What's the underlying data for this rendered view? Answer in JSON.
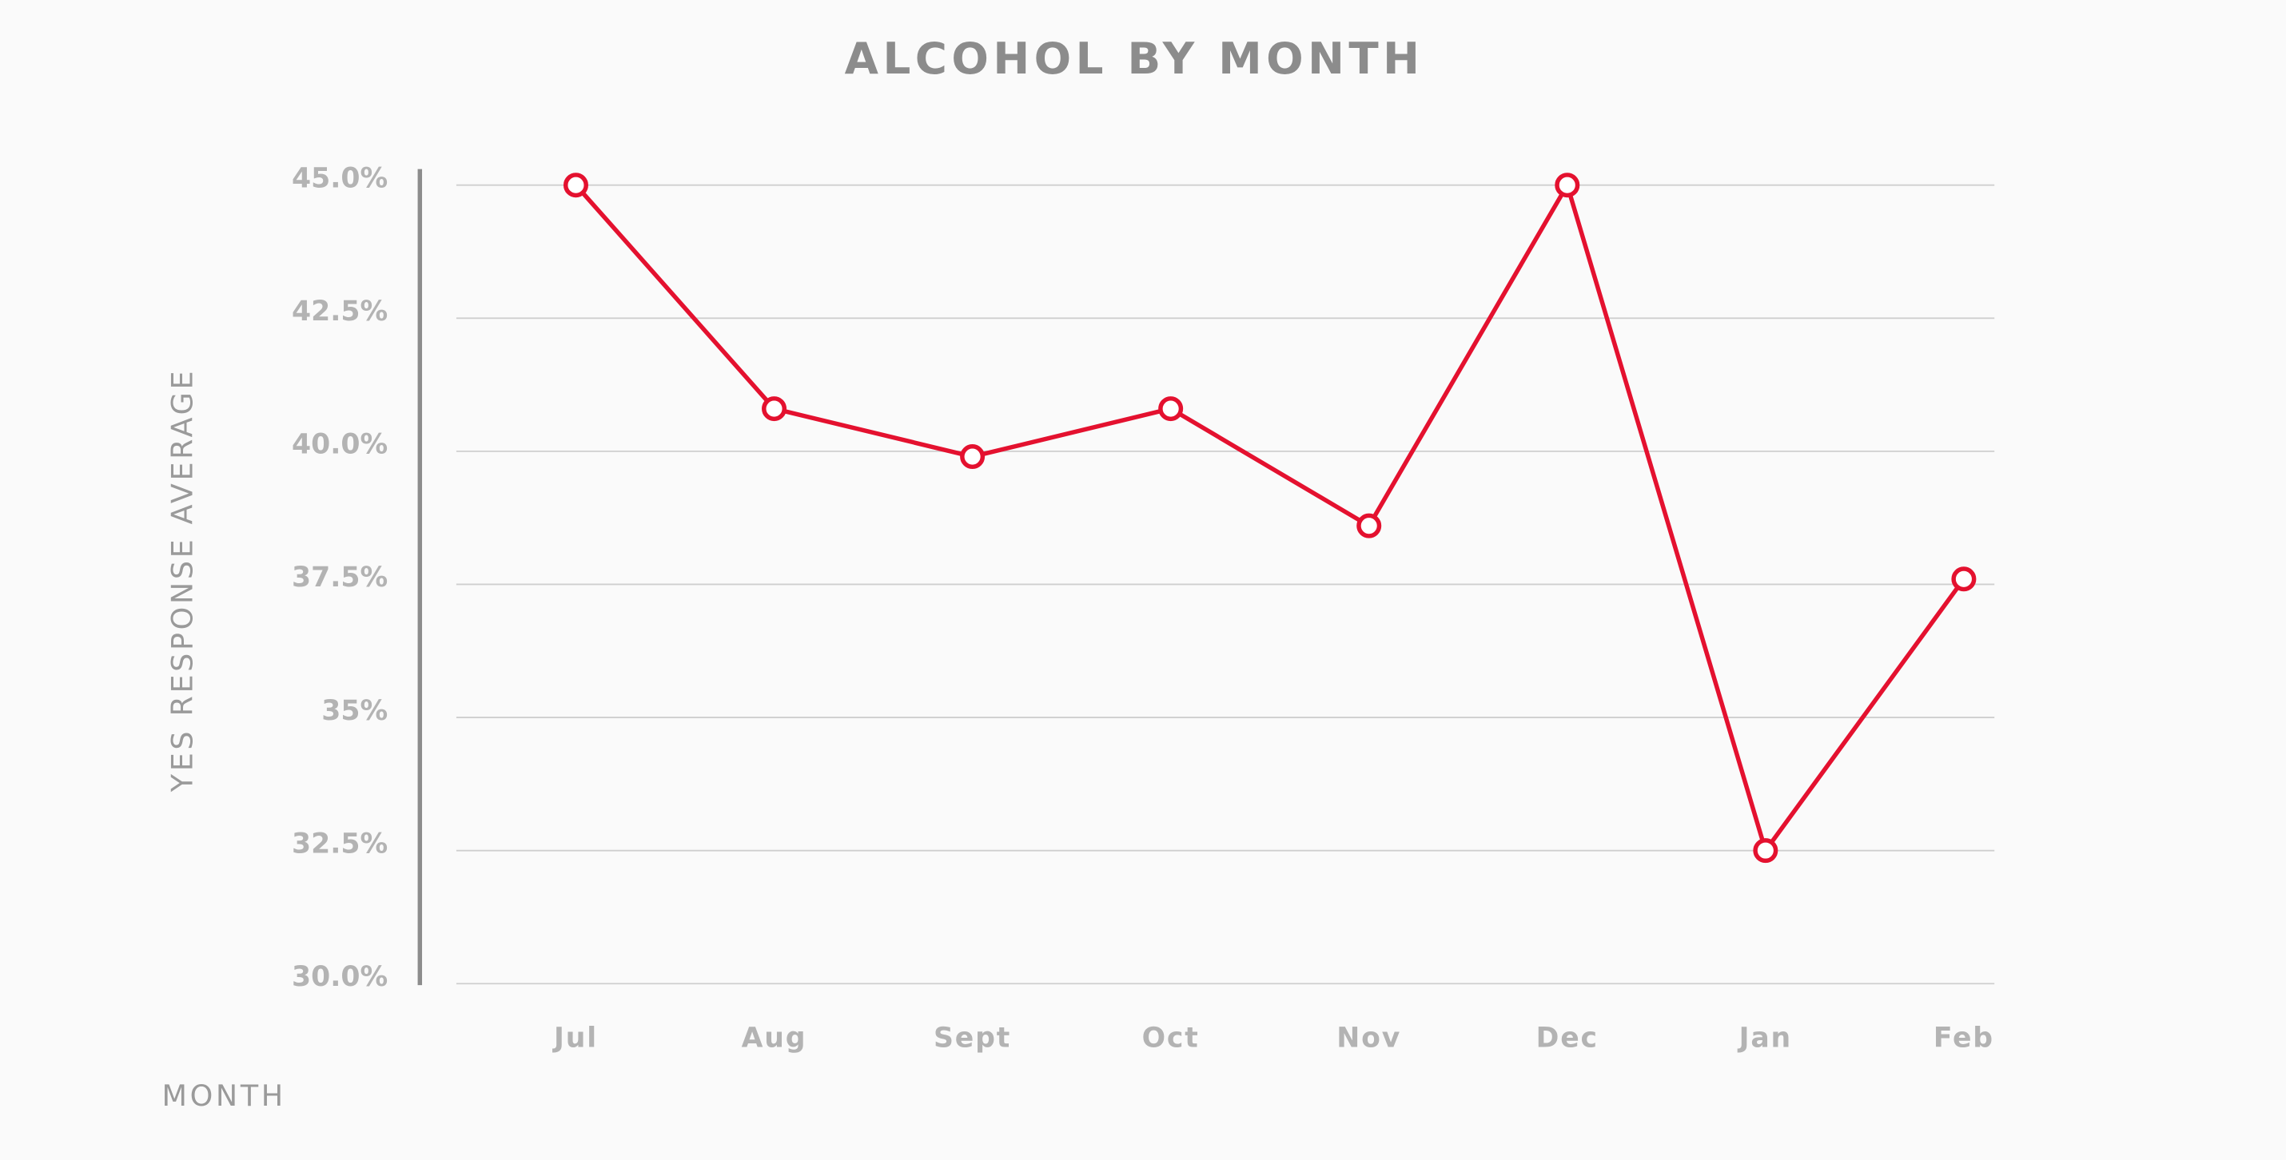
{
  "chart_data": {
    "type": "line",
    "title": "ALCOHOL BY MONTH",
    "y_label": "YES RESPONSE AVERAGE",
    "x_label": "MONTH",
    "categories": [
      "Jul",
      "Aug",
      "Sept",
      "Oct",
      "Nov",
      "Dec",
      "Jan",
      "Feb"
    ],
    "series": [
      {
        "color": "#e4112f",
        "values": [
          45,
          40.8,
          39.9,
          40.8,
          38.6,
          45,
          32.5,
          37.6
        ]
      }
    ],
    "ylim": [
      30,
      45
    ],
    "yticks": [
      {
        "value": 30,
        "label": "30.0%"
      },
      {
        "value": 32.5,
        "label": "32.5%"
      },
      {
        "value": 35,
        "label": "35%"
      },
      {
        "value": 37.5,
        "label": "37.5%"
      },
      {
        "value": 40,
        "label": "40.0%"
      },
      {
        "value": 42.5,
        "label": "42.5%"
      },
      {
        "value": 45,
        "label": "45.0%"
      }
    ],
    "grid": true
  }
}
